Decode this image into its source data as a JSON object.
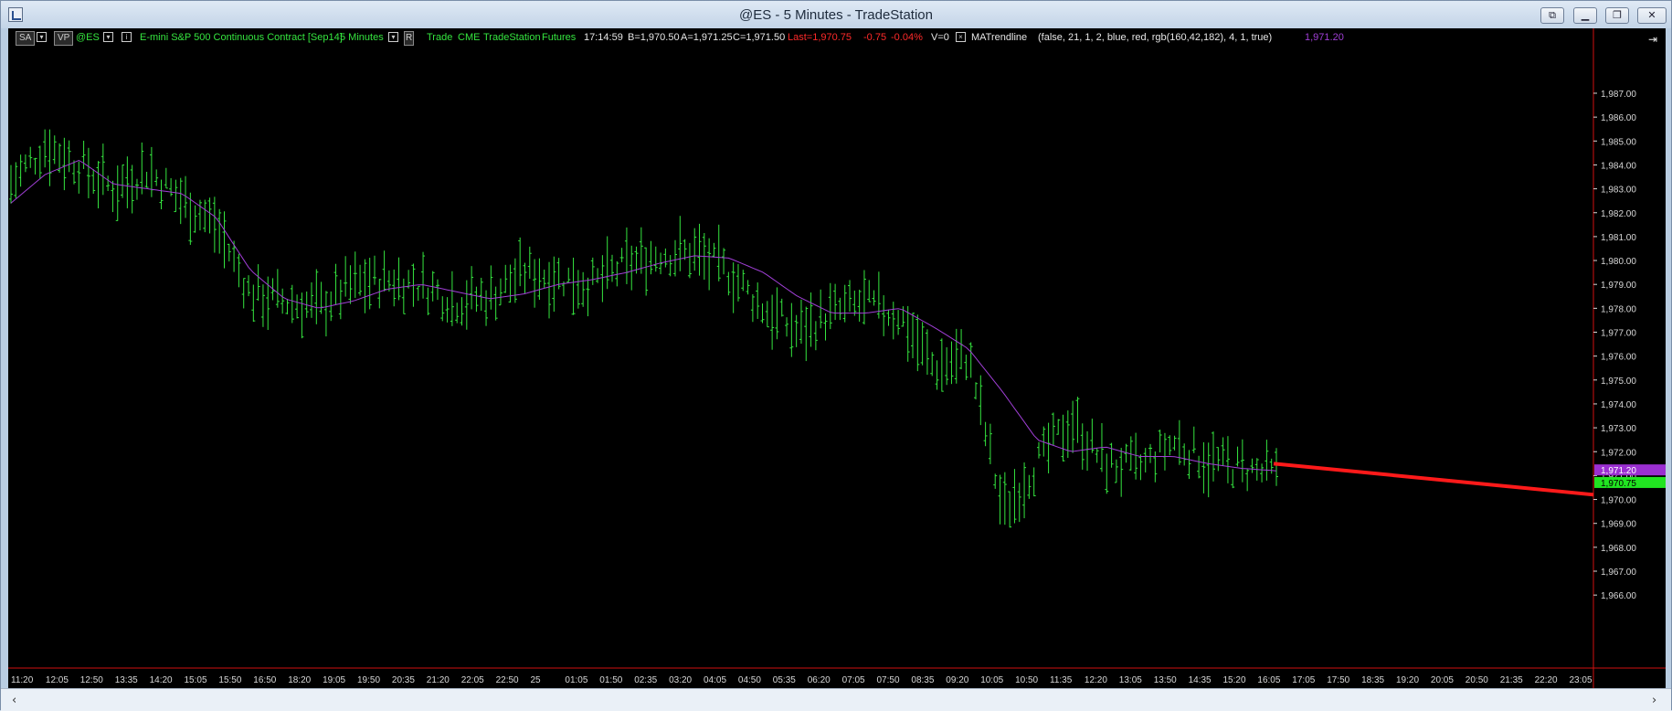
{
  "window": {
    "title": "@ES - 5 Minutes - TradeStation"
  },
  "toolbar": {
    "sa": "SA",
    "vp": "VP",
    "symbol": "@ES",
    "description": "E-mini S&P 500 Continuous Contract [Sep14]",
    "interval": "5 Minutes",
    "r": "R",
    "mode": "Trade",
    "exchange": "CME",
    "source": "TradeStation",
    "category": "Futures",
    "time": "17:14:59",
    "bid": "B=1,970.50",
    "ask": "A=1,971.25",
    "close": "C=1,971.50",
    "last": "Last=1,970.75",
    "change": "-0.75",
    "change_pct": "-0.04%",
    "volume": "V=0",
    "study": "MATrendline",
    "study_params": "(false,  21,  1,  2,  blue,  red,  rgb(160,42,182),  4,  1,  true)",
    "study_value": "1,971.20"
  },
  "colors": {
    "bars": "#35e53f",
    "ma": "#a03fd6",
    "trendline": "#ff1a1a",
    "axis_text": "#d8d8d8",
    "background": "#000000"
  },
  "price_axis": [
    "1,987.00",
    "1,986.00",
    "1,985.00",
    "1,984.00",
    "1,983.00",
    "1,982.00",
    "1,981.00",
    "1,980.00",
    "1,979.00",
    "1,978.00",
    "1,977.00",
    "1,976.00",
    "1,975.00",
    "1,974.00",
    "1,973.00",
    "1,972.00",
    "1,971.00",
    "1,970.00",
    "1,969.00",
    "1,968.00",
    "1,967.00",
    "1,966.00"
  ],
  "price_tags": {
    "ma": "1,971.20",
    "last": "1,970.75"
  },
  "time_axis": [
    "11:20",
    "12:05",
    "12:50",
    "13:35",
    "14:20",
    "15:05",
    "15:50",
    "16:50",
    "18:20",
    "19:05",
    "19:50",
    "20:35",
    "21:20",
    "22:05",
    "22:50",
    "25",
    "01:05",
    "01:50",
    "02:35",
    "03:20",
    "04:05",
    "04:50",
    "05:35",
    "06:20",
    "07:05",
    "07:50",
    "08:35",
    "09:20",
    "10:05",
    "10:50",
    "11:35",
    "12:20",
    "13:05",
    "13:50",
    "14:35",
    "15:20",
    "16:05",
    "17:05",
    "17:50",
    "18:35",
    "19:20",
    "20:05",
    "20:50",
    "21:35",
    "22:20",
    "23:05"
  ],
  "chart_data": {
    "type": "line",
    "symbol": "@ES",
    "interval": "5 Minutes",
    "series": [
      {
        "name": "Price (approx. bar midpoints)",
        "x": [
          "11:20",
          "12:05",
          "12:50",
          "13:35",
          "14:20",
          "15:05",
          "15:50",
          "16:50",
          "18:20",
          "19:05",
          "19:50",
          "20:35",
          "21:20",
          "22:05",
          "22:50",
          "25",
          "01:05",
          "01:50",
          "02:35",
          "03:20",
          "04:05",
          "04:50",
          "05:35",
          "06:20",
          "07:05",
          "07:50",
          "08:35",
          "09:20",
          "10:05",
          "10:50",
          "11:35",
          "12:20",
          "13:05",
          "13:50",
          "14:35",
          "15:20",
          "16:05",
          "17:05"
        ],
        "values": [
          1983.2,
          1984.8,
          1984.0,
          1983.0,
          1983.8,
          1982.5,
          1981.5,
          1978.6,
          1978.3,
          1978.0,
          1979.0,
          1979.2,
          1979.0,
          1978.3,
          1978.5,
          1979.5,
          1979.3,
          1979.0,
          1979.8,
          1980.3,
          1980.3,
          1979.5,
          1978.0,
          1977.0,
          1977.8,
          1978.2,
          1977.7,
          1975.5,
          1976.0,
          1969.5,
          1971.5,
          1973.3,
          1971.5,
          1971.3,
          1972.4,
          1971.6,
          1971.3,
          1971.0
        ]
      },
      {
        "name": "MATrendline",
        "x": [
          "11:20",
          "12:05",
          "12:50",
          "13:35",
          "14:20",
          "15:05",
          "15:50",
          "16:50",
          "18:20",
          "19:05",
          "19:50",
          "20:35",
          "21:20",
          "22:05",
          "22:50",
          "25",
          "01:05",
          "01:50",
          "02:35",
          "03:20",
          "04:05",
          "04:50",
          "05:35",
          "06:20",
          "07:05",
          "07:50",
          "08:35",
          "09:20",
          "10:05",
          "10:50",
          "11:35",
          "12:20",
          "13:05",
          "13:50",
          "14:35",
          "15:20",
          "16:05",
          "17:05"
        ],
        "values": [
          1982.4,
          1983.6,
          1984.2,
          1983.2,
          1983.0,
          1982.8,
          1981.8,
          1979.6,
          1978.4,
          1978.0,
          1978.3,
          1978.8,
          1979.0,
          1978.7,
          1978.4,
          1978.6,
          1979.0,
          1979.2,
          1979.5,
          1979.9,
          1980.2,
          1980.1,
          1979.5,
          1978.5,
          1977.8,
          1977.8,
          1978.0,
          1977.2,
          1976.3,
          1974.5,
          1972.5,
          1972.0,
          1972.2,
          1971.8,
          1971.8,
          1971.5,
          1971.3,
          1971.2
        ]
      },
      {
        "name": "Trendline",
        "x": [
          "17:05",
          "23:05"
        ],
        "values": [
          1971.5,
          1970.2
        ]
      }
    ],
    "ylim": [
      1966,
      1987.5
    ]
  }
}
